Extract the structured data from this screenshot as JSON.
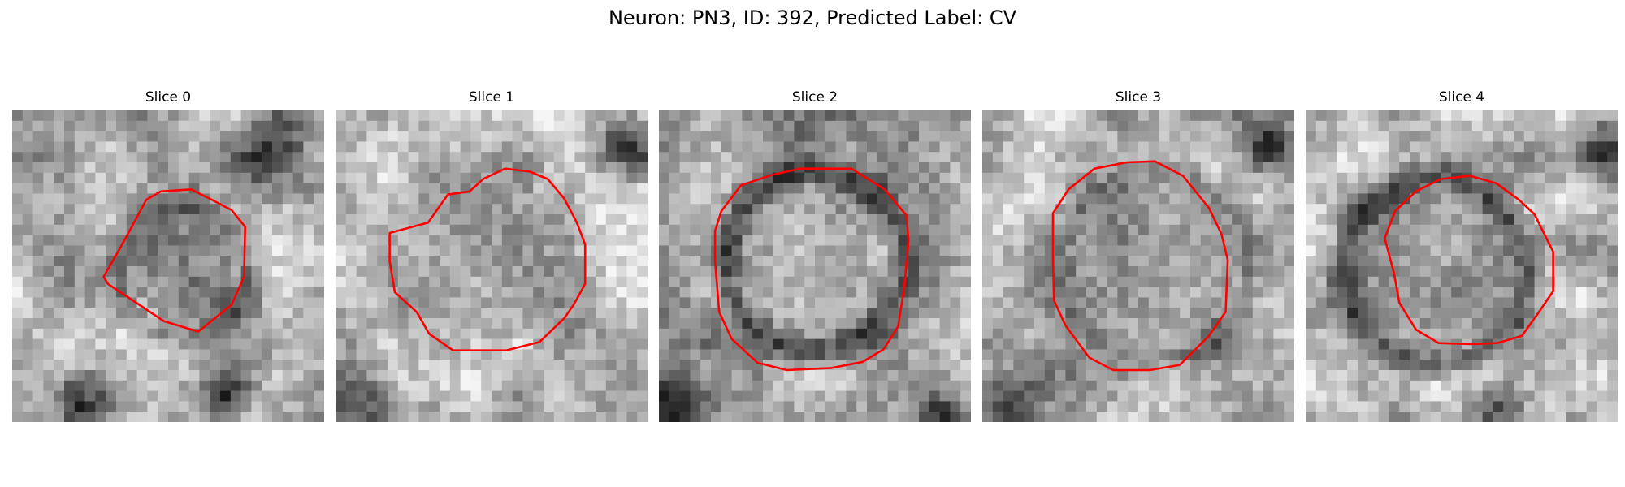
{
  "figure": {
    "title": "Neuron: PN3, ID: 392, Predicted Label: CV"
  },
  "colors": {
    "contour": "#ff0000",
    "colormap": "grayscale"
  },
  "grid_cells": 30,
  "panels": [
    {
      "title": "Slice 0"
    },
    {
      "title": "Slice 1"
    },
    {
      "title": "Slice 2"
    },
    {
      "title": "Slice 3"
    },
    {
      "title": "Slice 4"
    }
  ]
}
